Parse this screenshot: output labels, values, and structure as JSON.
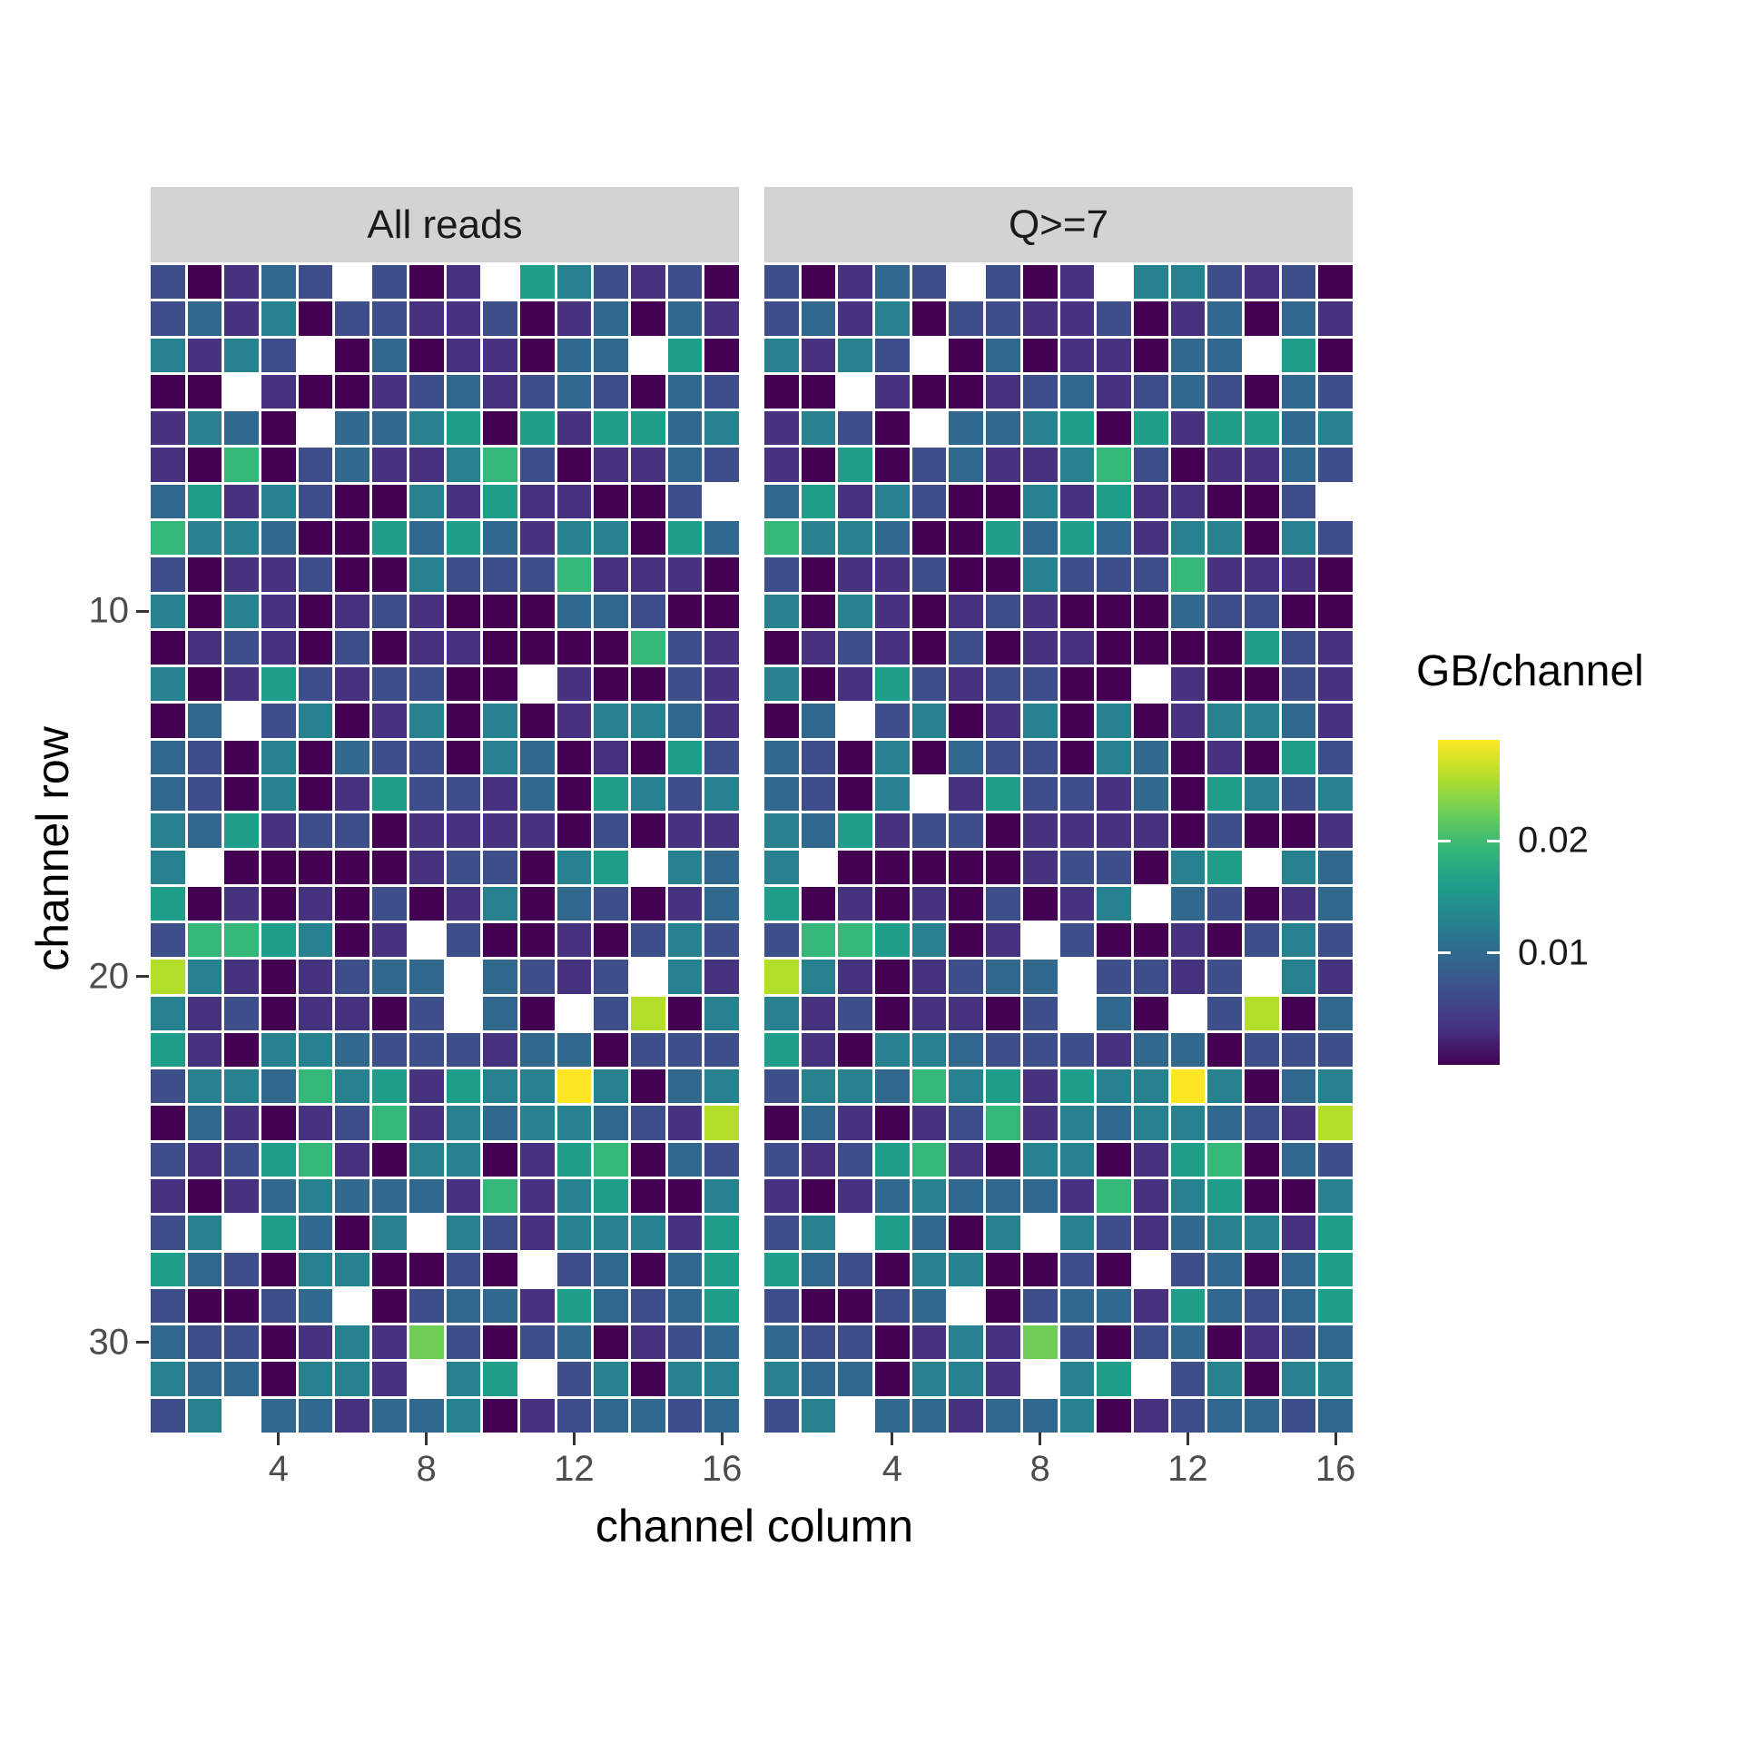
{
  "chart_data": {
    "type": "heatmap",
    "facet_variable": "read filter",
    "facets": [
      {
        "label": "All reads",
        "rows": [
          "20132.201.542120",
          "2314022112013031",
          "4142.03011033.50",
          "00.1001231232032",
          "1430.33450515534",
          "1060231146201132",
          "351420041511002.",
          "6443005353144053",
          "2011200422261110",
          "4041012100033200",
          "0121020110000621",
          "4015212200.10021",
          "03.2401404014431",
          "3204032204301052",
          "3204015221305424",
          "4351220111102011",
          "4.00000122045.43",
          "5010102014032013",
          "2665401.20010242",
          "84101233.3212.41",
          "41201102.30.2804",
          "5104432221330222",
          "2443645154494034",
          "0310126143443218",
          "2125610440156032",
          "1013433316145004",
          "24.5304.42144415",
          "5320440020.23035",
          "20023.0233153235",
          "3220141720230123",
          "4330441.45.24044",
          "24.3313340123323"
        ]
      },
      {
        "label": "Q>=7",
        "rows": [
          "20132.201.442120",
          "2314022112013031",
          "4142.03011033.50",
          "00.1001231232032",
          "1420.33450515534",
          "1050231146201132",
          "351420041511002.",
          "6443005353144042",
          "2011200422261110",
          "4041012100032200",
          "0121020110000521",
          "4015212200.10021",
          "03.2401404014431",
          "3204032204301052",
          "3204.15221305424",
          "4351220111102001",
          "4.00000122045.43",
          "5010102014.32013",
          "2665401.20010242",
          "84101233.2212.41",
          "41201102.30.2803",
          "5104432221330222",
          "2443645154494034",
          "0310126143443218",
          "2125610440156032",
          "1013433316145004",
          "24.5304.42134415",
          "5320440020.23035",
          "20023.0233153235",
          "3220141720230123",
          "4330441.45.24044",
          "24.3313340123323"
        ]
      }
    ],
    "encoding": {
      "missing_char": ".",
      "level_description": "each grid character 0-9 is an index into palette; '.' = no data (white)",
      "palette": [
        "#440154",
        "#46327e",
        "#3d4e8a",
        "#31688e",
        "#26828e",
        "#1f9e89",
        "#35b779",
        "#6ece58",
        "#b5de2b",
        "#fde725"
      ],
      "approx_value_GB": [
        0.001,
        0.003,
        0.006,
        0.01,
        0.013,
        0.016,
        0.019,
        0.022,
        0.026,
        0.029
      ]
    },
    "x": {
      "title": "channel column",
      "ticks": [
        4,
        8,
        12,
        16
      ],
      "n_cols": 16
    },
    "y": {
      "title": "channel row",
      "ticks": [
        10,
        20,
        30
      ],
      "n_rows": 32,
      "direction": "top_to_bottom"
    },
    "legend": {
      "title": "GB/channel",
      "tick_labels": [
        "0.02",
        "0.01"
      ],
      "tick_values": [
        0.02,
        0.01
      ],
      "range": [
        0,
        0.029
      ],
      "position": "right"
    }
  },
  "strip": {
    "bg": "#d3d3d3",
    "text_color": "#1a1a1a"
  },
  "colors": {
    "background": "#ffffff",
    "tick_text": "#4d4d4d",
    "axis_title": "#000000",
    "tick_mark": "#333333"
  }
}
